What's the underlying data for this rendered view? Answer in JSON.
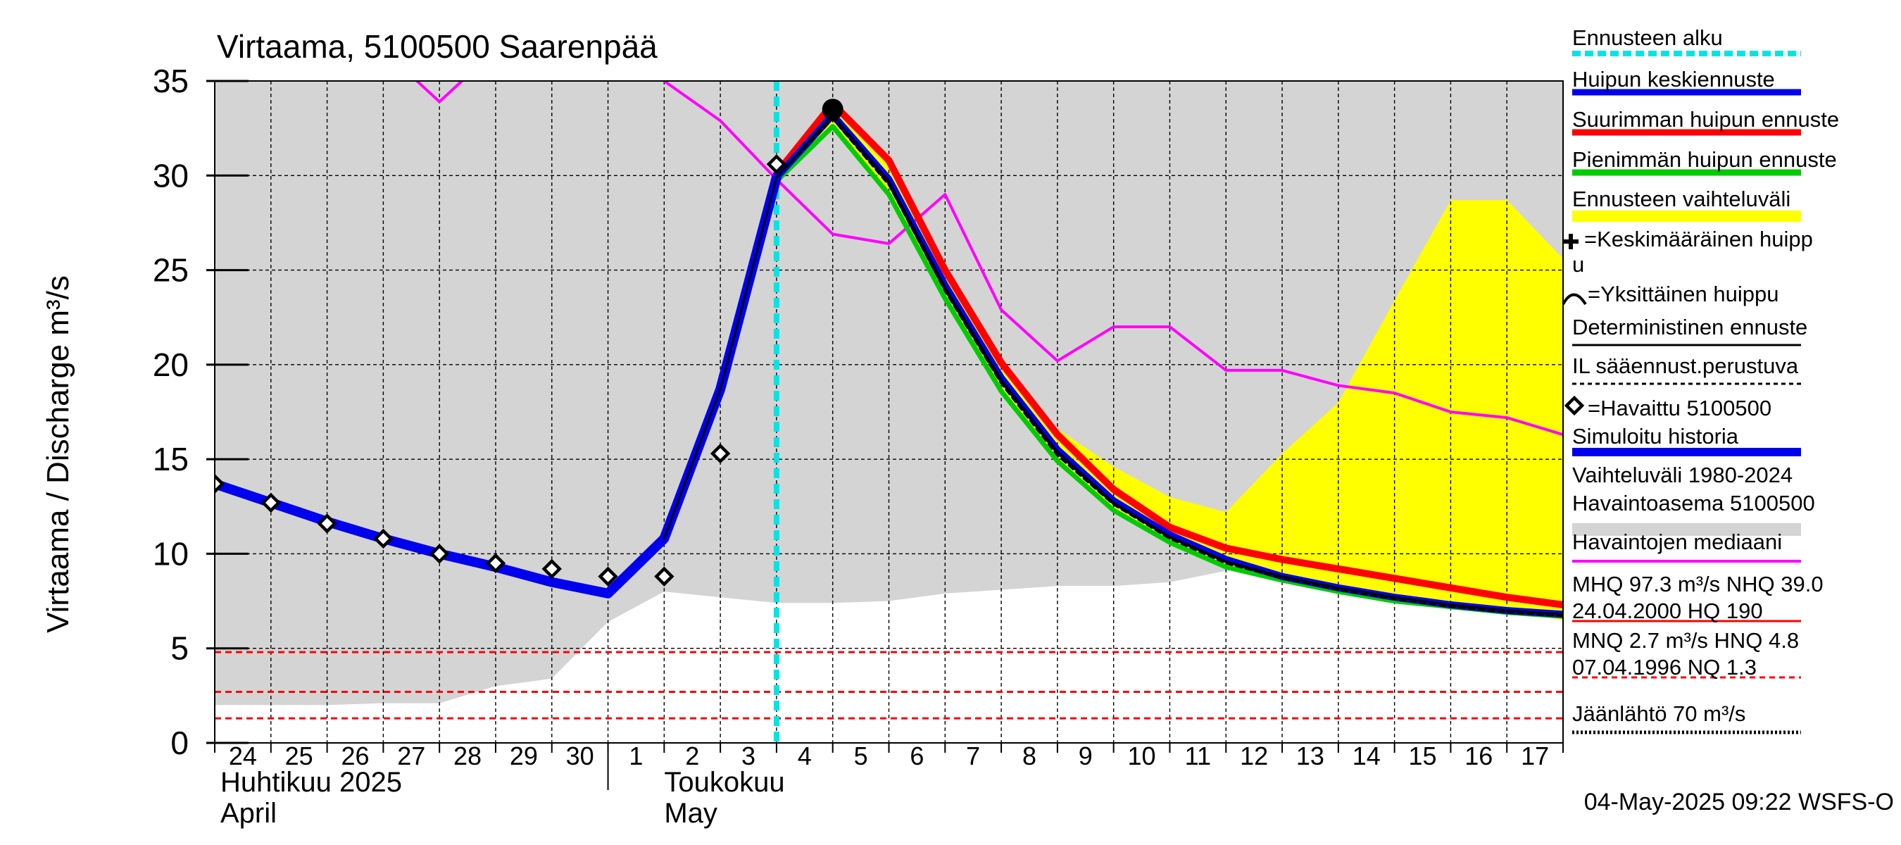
{
  "colors": {
    "background_band": "#d4d4d4",
    "forecast_start": "#00e5e5",
    "mean_forecast": "#0000ee",
    "max_forecast": "#ff0000",
    "min_forecast": "#00cc00",
    "range": "#ffff00",
    "median": "#ff00ff",
    "threshold": "#ff0000",
    "history": "#0000ee"
  },
  "chart_data": {
    "type": "line",
    "title": "Virtaama, 5100500 Saarenpää",
    "ylabel": "Virtaama / Discharge   m³/s",
    "ylim": [
      0,
      35
    ],
    "yticks": [
      "0",
      "5",
      "10",
      "15",
      "20",
      "25",
      "30",
      "35"
    ],
    "x_day_range": [
      0,
      24
    ],
    "day_labels": [
      "24",
      "25",
      "26",
      "27",
      "28",
      "29",
      "30",
      "1",
      "2",
      "3",
      "4",
      "5",
      "6",
      "7",
      "8",
      "9",
      "10",
      "11",
      "12",
      "13",
      "14",
      "15",
      "16",
      "17"
    ],
    "month_labels": [
      {
        "fi": "Huhtikuu  2025",
        "en": "April",
        "at_day": 0.1
      },
      {
        "fi": "Toukokuu",
        "en": "May",
        "at_day": 8.0
      }
    ],
    "month_divider_day": 7.0,
    "forecast_start_day": 10.0,
    "range_band": {
      "x": [
        0,
        1,
        2,
        3,
        4,
        5,
        6,
        7,
        8,
        9,
        10,
        11,
        12,
        13,
        14,
        15,
        16,
        17,
        18,
        19,
        20,
        21,
        22,
        23,
        24
      ],
      "upper": [
        35,
        35,
        35,
        35,
        35,
        35,
        35,
        35,
        35,
        35,
        35,
        35,
        35,
        35,
        35,
        35,
        35,
        35,
        35,
        35,
        35,
        35,
        35,
        35,
        35
      ],
      "lower": [
        2.0,
        2.0,
        2.0,
        2.1,
        2.1,
        3.0,
        3.4,
        6.4,
        8.0,
        7.7,
        7.4,
        7.4,
        7.5,
        7.9,
        8.1,
        8.3,
        8.3,
        8.5,
        9.1,
        9.2,
        9.2,
        9.1,
        8.9,
        8.9,
        8.6
      ]
    },
    "forecast_range": {
      "x": [
        10,
        11,
        12,
        13,
        14,
        15,
        16,
        17,
        18,
        19,
        20,
        21,
        22,
        23,
        24
      ],
      "upper": [
        30.3,
        33.9,
        31.0,
        25.2,
        20.3,
        16.6,
        14.6,
        13.0,
        12.2,
        15.3,
        18.0,
        23.4,
        28.7,
        28.7,
        25.6
      ],
      "lower": [
        29.7,
        32.6,
        29.2,
        23.6,
        18.6,
        14.9,
        12.3,
        10.6,
        9.3,
        8.6,
        8.0,
        7.5,
        7.2,
        6.9,
        6.5
      ]
    },
    "series": [
      {
        "name": "Havaintojen mediaani",
        "color": "#ff00ff",
        "width": 4,
        "segments": [
          {
            "x": [
              3.6,
              4.0,
              4.4
            ],
            "y": [
              35.0,
              33.9,
              35.0
            ]
          },
          {
            "x": [
              8.0,
              9.0,
              10.0,
              11.0,
              12.0,
              13.0,
              14.0,
              15.0,
              16.0,
              17.0,
              18.0,
              19.0,
              20.0,
              21.0,
              22.0,
              23.0,
              24.0
            ],
            "y": [
              35.0,
              32.9,
              29.8,
              26.9,
              26.4,
              29.0,
              22.9,
              20.2,
              22.0,
              22.0,
              19.7,
              19.7,
              18.9,
              18.5,
              17.5,
              17.2,
              16.3
            ]
          }
        ]
      },
      {
        "name": "Suurimman huipun ennuste",
        "color": "#ff0000",
        "width": 10,
        "x": [
          9.0,
          10.0,
          11.0,
          12.0,
          13.0,
          14.0,
          15.0,
          16.0,
          17.0,
          18.0,
          19.0,
          20.0,
          21.0,
          22.0,
          23.0,
          24.0
        ],
        "y": [
          18.7,
          30.1,
          33.8,
          30.8,
          25.0,
          20.1,
          16.3,
          13.4,
          11.4,
          10.3,
          9.7,
          9.2,
          8.7,
          8.2,
          7.7,
          7.3
        ]
      },
      {
        "name": "Pienimmän huipun ennuste",
        "color": "#00cc00",
        "width": 7,
        "x": [
          9.0,
          10.0,
          11.0,
          12.0,
          13.0,
          14.0,
          15.0,
          16.0,
          17.0,
          18.0,
          19.0,
          20.0,
          21.0,
          22.0,
          23.0,
          24.0
        ],
        "y": [
          18.7,
          29.7,
          32.6,
          29.0,
          23.5,
          18.6,
          14.9,
          12.3,
          10.6,
          9.3,
          8.6,
          8.0,
          7.5,
          7.2,
          6.9,
          6.7
        ]
      },
      {
        "name": "Huipun keskiennuste",
        "color": "#0000ee",
        "width": 10,
        "x": [
          9.0,
          10.0,
          11.0,
          12.0,
          13.0,
          14.0,
          15.0,
          16.0,
          17.0,
          18.0,
          19.0,
          20.0,
          21.0,
          22.0,
          23.0,
          24.0
        ],
        "y": [
          18.7,
          29.9,
          33.2,
          29.8,
          24.2,
          19.3,
          15.5,
          12.8,
          11.0,
          9.7,
          8.8,
          8.2,
          7.7,
          7.3,
          7.0,
          6.8
        ]
      },
      {
        "name": "Simuloitu historia",
        "color": "#0000ee",
        "width": 14,
        "x": [
          0.0,
          1.0,
          2.0,
          3.0,
          4.0,
          5.0,
          6.0,
          7.0,
          8.0,
          9.0,
          10.0
        ],
        "y": [
          13.7,
          12.7,
          11.7,
          10.8,
          10.0,
          9.3,
          8.5,
          7.9,
          10.8,
          18.7,
          29.9
        ]
      },
      {
        "name": "Deterministinen ennuste",
        "color": "#000000",
        "width": 3,
        "x": [
          8.0,
          9.0,
          10.0,
          11.0,
          12.0,
          13.0,
          14.0,
          15.0,
          16.0,
          17.0,
          18.0,
          19.0,
          20.0,
          21.0,
          22.0,
          23.0,
          24.0
        ],
        "y": [
          10.8,
          18.7,
          29.9,
          33.2,
          29.7,
          24.1,
          19.2,
          15.4,
          12.7,
          10.9,
          9.6,
          8.8,
          8.2,
          7.7,
          7.3,
          7.0,
          6.8
        ]
      },
      {
        "name": "IL sääennust.perustuva",
        "color": "#000000",
        "width": 3,
        "dash": "8 6",
        "x": [
          10.0,
          11.0,
          12.0,
          13.0,
          14.0,
          15.0,
          16.0,
          17.0,
          18.0,
          19.0,
          20.0,
          21.0,
          22.0,
          23.0,
          24.0
        ],
        "y": [
          29.9,
          33.0,
          29.5,
          23.9,
          19.0,
          15.2,
          12.6,
          10.8,
          9.5,
          8.7,
          8.1,
          7.6,
          7.2,
          6.9,
          6.7
        ]
      }
    ],
    "observed": {
      "name": "Havaittu 5100500",
      "x": [
        0,
        1,
        2,
        3,
        4,
        5,
        6,
        7,
        8,
        9,
        10,
        11
      ],
      "y": [
        13.7,
        12.7,
        11.6,
        10.8,
        10.0,
        9.5,
        9.2,
        8.8,
        8.8,
        15.3,
        30.6,
        33.5
      ]
    },
    "peak_marker": {
      "x": 11.0,
      "y": 33.5
    },
    "thresholds": [
      {
        "name": "HNQ",
        "y": 4.8
      },
      {
        "name": "MNQ",
        "y": 2.7
      },
      {
        "name": "NQ",
        "y": 1.3
      }
    ],
    "legend": [
      {
        "label": "Ennusteen alku",
        "style": "dash-cyan"
      },
      {
        "label": "Huipun keskiennuste",
        "style": "blue"
      },
      {
        "label": "Suurimman huipun ennuste",
        "style": "red"
      },
      {
        "label": "Pienimmän huipun ennuste",
        "style": "green"
      },
      {
        "label": "Ennusteen vaihteluväli",
        "style": "yellow"
      },
      {
        "label": "=Keskimääräinen huipp",
        "label2": "u",
        "style": "plus"
      },
      {
        "label": "=Yksittäinen huippu",
        "style": "arc"
      },
      {
        "label": "Deterministinen ennuste",
        "style": "black"
      },
      {
        "label": "IL sääennust.perustuva",
        "style": "black-dash"
      },
      {
        "label": "=Havaittu 5100500",
        "style": "diamond"
      },
      {
        "label": "Simuloitu historia",
        "style": "blue-thick"
      },
      {
        "label": "Vaihteluväli 1980-2024",
        "label2": " Havaintoasema 5100500",
        "style": "grey"
      },
      {
        "label": "Havaintojen mediaani",
        "style": "magenta"
      },
      {
        "label": "MHQ 97.3 m³/s NHQ 39.0",
        "label2": "24.04.2000 HQ  190",
        "style": "red-thin"
      },
      {
        "label": "MNQ  2.7 m³/s HNQ  4.8",
        "label2": "07.04.1996 NQ  1.3",
        "style": "red-dash"
      },
      {
        "label": "Jäänlähtö 70 m³/s",
        "style": "black-dotted"
      }
    ],
    "footer": "04-May-2025 09:22 WSFS-O"
  }
}
